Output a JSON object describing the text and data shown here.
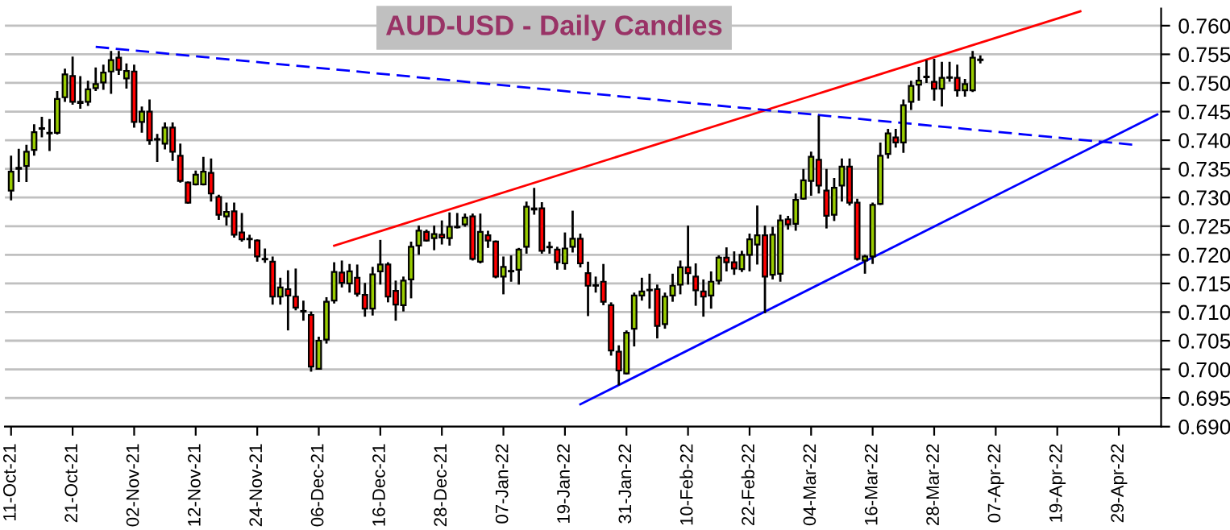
{
  "chart_data": {
    "type": "candlestick",
    "title": "AUD-USD - Daily Candles",
    "categories": [
      "11-Oct-21",
      null,
      null,
      null,
      null,
      null,
      null,
      null,
      "21-Oct-21",
      null,
      null,
      null,
      null,
      null,
      null,
      null,
      "02-Nov-21",
      null,
      null,
      null,
      null,
      null,
      null,
      null,
      "12-Nov-21",
      null,
      null,
      null,
      null,
      null,
      null,
      null,
      "24-Nov-21",
      null,
      null,
      null,
      null,
      null,
      null,
      null,
      "06-Dec-21",
      null,
      null,
      null,
      null,
      null,
      null,
      null,
      "16-Dec-21",
      null,
      null,
      null,
      null,
      null,
      null,
      null,
      "28-Dec-21",
      null,
      null,
      null,
      null,
      null,
      null,
      null,
      "07-Jan-22",
      null,
      null,
      null,
      null,
      null,
      null,
      null,
      "19-Jan-22",
      null,
      null,
      null,
      null,
      null,
      null,
      null,
      "31-Jan-22",
      null,
      null,
      null,
      null,
      null,
      null,
      null,
      "10-Feb-22",
      null,
      null,
      null,
      null,
      null,
      null,
      null,
      "22-Feb-22",
      null,
      null,
      null,
      null,
      null,
      null,
      null,
      "04-Mar-22",
      null,
      null,
      null,
      null,
      null,
      null,
      null,
      "16-Mar-22",
      null,
      null,
      null,
      null,
      null,
      null,
      null,
      "28-Mar-22",
      null,
      null,
      null,
      null,
      null,
      null,
      null,
      "07-Apr-22",
      null,
      null,
      null,
      null,
      null,
      null,
      null,
      "19-Apr-22",
      null,
      null,
      null,
      null,
      null,
      null,
      null,
      "29-Apr-22",
      null,
      null,
      null,
      null,
      null
    ],
    "series": [
      {
        "colors": [
          "#99cc00",
          "#ff0000",
          "#99cc00",
          "#99cc00",
          "#ff0000",
          "#ff0000",
          "#99cc00",
          "#99cc00",
          "#ff0000",
          "#ff0000",
          "#99cc00",
          "#99cc00",
          "#99cc00",
          "#99cc00",
          "#ff0000",
          "#99cc00",
          "#ff0000",
          "#99cc00",
          "#ff0000",
          "#ff0000",
          "#99cc00",
          "#ff0000",
          "#ff0000",
          "#ff0000",
          "#99cc00",
          "#99cc00",
          "#ff0000",
          "#ff0000",
          "#99cc00",
          "#ff0000",
          "#ff0000",
          "#ff0000",
          "#ff0000",
          "#ff0000",
          "#ff0000",
          "#99cc00",
          "#ff0000",
          "#ff0000",
          "#ff0000",
          "#ff0000",
          "#99cc00",
          "#99cc00",
          "#99cc00",
          "#ff0000",
          "#99cc00",
          "#ff0000",
          "#ff0000",
          "#99cc00",
          "#99cc00",
          "#ff0000",
          "#ff0000",
          "#99cc00",
          "#99cc00",
          "#99cc00",
          "#ff0000",
          "#99cc00",
          "#ff0000",
          "#99cc00",
          "#ff0000",
          "#99cc00",
          "#ff0000",
          "#99cc00",
          "#ff0000",
          "#ff0000",
          "#99cc00",
          "#ff0000",
          "#99cc00",
          "#99cc00",
          "#ff0000",
          "#ff0000",
          "#ff0000",
          "#ff0000",
          "#99cc00",
          "#99cc00",
          "#ff0000",
          "#ff0000",
          "#ff0000",
          "#ff0000",
          "#ff0000",
          "#ff0000",
          "#99cc00",
          "#99cc00",
          "#99cc00",
          "#ff0000",
          "#ff0000",
          "#99cc00",
          "#99cc00",
          "#99cc00",
          "#ff0000",
          "#ff0000",
          "#ff0000",
          "#99cc00",
          "#99cc00",
          "#ff0000",
          "#ff0000",
          "#99cc00",
          "#99cc00",
          "#99cc00",
          "#ff0000",
          "#99cc00",
          "#99cc00",
          "#ff0000",
          "#99cc00",
          "#99cc00",
          "#99cc00",
          "#ff0000",
          "#ff0000",
          "#99cc00",
          "#99cc00",
          "#ff0000",
          "#ff0000",
          "#99cc00",
          "#99cc00",
          "#99cc00",
          "#99cc00",
          "#ff0000",
          "#99cc00",
          "#99cc00",
          "#99cc00",
          "#ff0000",
          "#ff0000",
          "#99cc00",
          "#ff0000",
          "#ff0000",
          "#99cc00",
          "#99cc00",
          "#ff0000",
          null,
          null,
          null,
          null,
          null,
          null,
          null,
          null,
          null,
          null,
          null,
          null,
          null,
          null,
          null,
          null,
          null,
          null,
          null,
          null,
          null,
          null,
          null
        ],
        "ohlc": [
          [
            0.7312,
            0.7373,
            0.7295,
            0.7345
          ],
          [
            0.7352,
            0.7385,
            0.7327,
            0.735
          ],
          [
            0.7355,
            0.7392,
            0.7327,
            0.738
          ],
          [
            0.7383,
            0.7428,
            0.7373,
            0.7414
          ],
          [
            0.7421,
            0.7441,
            0.7405,
            0.742
          ],
          [
            0.7413,
            0.7437,
            0.7381,
            0.7412
          ],
          [
            0.7413,
            0.7486,
            0.741,
            0.7472
          ],
          [
            0.7475,
            0.7525,
            0.7467,
            0.7515
          ],
          [
            0.7512,
            0.7546,
            0.7462,
            0.7467
          ],
          [
            0.7467,
            0.7512,
            0.7455,
            0.7465
          ],
          [
            0.7467,
            0.7504,
            0.746,
            0.7489
          ],
          [
            0.7491,
            0.7527,
            0.7486,
            0.7498
          ],
          [
            0.7501,
            0.7532,
            0.7488,
            0.7518
          ],
          [
            0.752,
            0.7556,
            0.7481,
            0.754
          ],
          [
            0.7544,
            0.7556,
            0.7514,
            0.7523
          ],
          [
            0.7508,
            0.7534,
            0.749,
            0.7521
          ],
          [
            0.752,
            0.7532,
            0.7422,
            0.7432
          ],
          [
            0.7432,
            0.7459,
            0.7413,
            0.745
          ],
          [
            0.745,
            0.7471,
            0.7392,
            0.74
          ],
          [
            0.7402,
            0.7411,
            0.7362,
            0.7401
          ],
          [
            0.7394,
            0.7431,
            0.7384,
            0.7422
          ],
          [
            0.7422,
            0.7431,
            0.7364,
            0.738
          ],
          [
            0.7373,
            0.7394,
            0.7326,
            0.7329
          ],
          [
            0.7326,
            0.7328,
            0.7289,
            0.7291
          ],
          [
            0.7323,
            0.7347,
            0.7321,
            0.734
          ],
          [
            0.7323,
            0.7371,
            0.7321,
            0.7345
          ],
          [
            0.7343,
            0.7368,
            0.7293,
            0.7307
          ],
          [
            0.7301,
            0.7305,
            0.7261,
            0.727
          ],
          [
            0.7267,
            0.7291,
            0.7251,
            0.7275
          ],
          [
            0.7276,
            0.7291,
            0.723,
            0.7235
          ],
          [
            0.7239,
            0.7273,
            0.7223,
            0.7227
          ],
          [
            0.7228,
            0.7235,
            0.7211,
            0.7227
          ],
          [
            0.7225,
            0.7227,
            0.7188,
            0.7197
          ],
          [
            0.7193,
            0.7211,
            0.7186,
            0.7192
          ],
          [
            0.7188,
            0.7197,
            0.7113,
            0.7127
          ],
          [
            0.7127,
            0.716,
            0.7113,
            0.7143
          ],
          [
            0.714,
            0.7173,
            0.7068,
            0.7129
          ],
          [
            0.7127,
            0.7176,
            0.7103,
            0.7108
          ],
          [
            0.7102,
            0.712,
            0.7085,
            0.7101
          ],
          [
            0.7095,
            0.7101,
            0.6996,
            0.7005
          ],
          [
            0.7001,
            0.7057,
            0.7,
            0.705
          ],
          [
            0.7052,
            0.7126,
            0.7045,
            0.7118
          ],
          [
            0.712,
            0.7187,
            0.7115,
            0.717
          ],
          [
            0.7169,
            0.719,
            0.7143,
            0.7151
          ],
          [
            0.715,
            0.7184,
            0.7134,
            0.7171
          ],
          [
            0.716,
            0.7183,
            0.7127,
            0.7132
          ],
          [
            0.713,
            0.7151,
            0.7092,
            0.7106
          ],
          [
            0.7106,
            0.7179,
            0.7094,
            0.7166
          ],
          [
            0.7171,
            0.7226,
            0.7148,
            0.7183
          ],
          [
            0.7183,
            0.7187,
            0.7117,
            0.7127
          ],
          [
            0.7137,
            0.7155,
            0.7085,
            0.7113
          ],
          [
            0.7112,
            0.7162,
            0.7101,
            0.7155
          ],
          [
            0.7157,
            0.7223,
            0.7124,
            0.7214
          ],
          [
            0.7216,
            0.7251,
            0.72,
            0.7242
          ],
          [
            0.724,
            0.7244,
            0.7223,
            0.7225
          ],
          [
            0.7229,
            0.7251,
            0.7208,
            0.7236
          ],
          [
            0.7235,
            0.726,
            0.7218,
            0.723
          ],
          [
            0.7229,
            0.7274,
            0.7216,
            0.7249
          ],
          [
            0.7249,
            0.7273,
            0.7246,
            0.7248
          ],
          [
            0.7253,
            0.7272,
            0.7249,
            0.7265
          ],
          [
            0.7267,
            0.7272,
            0.719,
            0.7193
          ],
          [
            0.7188,
            0.7272,
            0.7185,
            0.724
          ],
          [
            0.7234,
            0.7242,
            0.7212,
            0.7225
          ],
          [
            0.7223,
            0.7225,
            0.7159,
            0.7162
          ],
          [
            0.7162,
            0.7197,
            0.7131,
            0.7179
          ],
          [
            0.7172,
            0.7199,
            0.7153,
            0.7171
          ],
          [
            0.7174,
            0.7212,
            0.7148,
            0.7209
          ],
          [
            0.7214,
            0.7293,
            0.7202,
            0.7284
          ],
          [
            0.7281,
            0.7317,
            0.727,
            0.7279
          ],
          [
            0.7281,
            0.7292,
            0.7202,
            0.7207
          ],
          [
            0.7214,
            0.7223,
            0.7202,
            0.7213
          ],
          [
            0.7209,
            0.7214,
            0.7174,
            0.7187
          ],
          [
            0.7185,
            0.7239,
            0.7174,
            0.7211
          ],
          [
            0.7214,
            0.7277,
            0.7204,
            0.7228
          ],
          [
            0.7228,
            0.7237,
            0.7178,
            0.7185
          ],
          [
            0.7168,
            0.7188,
            0.7093,
            0.7146
          ],
          [
            0.7147,
            0.7162,
            0.7134,
            0.7146
          ],
          [
            0.7153,
            0.7184,
            0.7112,
            0.7118
          ],
          [
            0.7112,
            0.7117,
            0.7024,
            0.7033
          ],
          [
            0.7031,
            0.7042,
            0.6972,
            0.6998
          ],
          [
            0.6993,
            0.7068,
            0.6991,
            0.7064
          ],
          [
            0.7071,
            0.7134,
            0.704,
            0.7129
          ],
          [
            0.7129,
            0.716,
            0.712,
            0.7136
          ],
          [
            0.7139,
            0.7167,
            0.7106,
            0.7138
          ],
          [
            0.714,
            0.7148,
            0.7054,
            0.7076
          ],
          [
            0.7079,
            0.7134,
            0.7071,
            0.7127
          ],
          [
            0.7129,
            0.7167,
            0.7118,
            0.7146
          ],
          [
            0.7148,
            0.719,
            0.7131,
            0.7178
          ],
          [
            0.7178,
            0.7251,
            0.7148,
            0.7168
          ],
          [
            0.7162,
            0.7185,
            0.7111,
            0.7138
          ],
          [
            0.7136,
            0.7157,
            0.7092,
            0.7127
          ],
          [
            0.7129,
            0.7171,
            0.7106,
            0.7153
          ],
          [
            0.7155,
            0.7199,
            0.7148,
            0.7195
          ],
          [
            0.7195,
            0.7213,
            0.7171,
            0.7187
          ],
          [
            0.7187,
            0.7206,
            0.7165,
            0.7176
          ],
          [
            0.7175,
            0.7207,
            0.717,
            0.72
          ],
          [
            0.72,
            0.7237,
            0.7171,
            0.7227
          ],
          [
            0.7218,
            0.7286,
            0.7183,
            0.7234
          ],
          [
            0.7234,
            0.7251,
            0.7098,
            0.7162
          ],
          [
            0.7165,
            0.7249,
            0.7157,
            0.7235
          ],
          [
            0.7167,
            0.727,
            0.7153,
            0.726
          ],
          [
            0.7262,
            0.7268,
            0.7244,
            0.7253
          ],
          [
            0.7254,
            0.7307,
            0.7242,
            0.7296
          ],
          [
            0.7298,
            0.735,
            0.7296,
            0.733
          ],
          [
            0.7329,
            0.738,
            0.7303,
            0.7371
          ],
          [
            0.7366,
            0.7443,
            0.7307,
            0.7321
          ],
          [
            0.7312,
            0.735,
            0.7246,
            0.7268
          ],
          [
            0.727,
            0.7334,
            0.7259,
            0.7317
          ],
          [
            0.7321,
            0.7368,
            0.7293,
            0.7354
          ],
          [
            0.7354,
            0.7368,
            0.7286,
            0.7291
          ],
          [
            0.7291,
            0.7298,
            0.719,
            0.7193
          ],
          [
            0.719,
            0.72,
            0.7167,
            0.7197
          ],
          [
            0.7197,
            0.7291,
            0.7184,
            0.7287
          ],
          [
            0.7289,
            0.7396,
            0.7287,
            0.7373
          ],
          [
            0.7376,
            0.742,
            0.7368,
            0.7412
          ],
          [
            0.7405,
            0.742,
            0.7387,
            0.7396
          ],
          [
            0.7396,
            0.7471,
            0.7378,
            0.7461
          ],
          [
            0.7467,
            0.7504,
            0.7453,
            0.7495
          ],
          [
            0.7497,
            0.7528,
            0.7469,
            0.7504
          ],
          [
            0.7511,
            0.754,
            0.75,
            0.751
          ],
          [
            0.7502,
            0.7542,
            0.7469,
            0.749
          ],
          [
            0.749,
            0.7537,
            0.7459,
            0.7509
          ],
          [
            0.751,
            0.7537,
            0.7502,
            0.7509
          ],
          [
            0.7509,
            0.7532,
            0.7476,
            0.7487
          ],
          [
            0.7487,
            0.7507,
            0.7476,
            0.7498
          ],
          [
            0.7487,
            0.7556,
            0.7484,
            0.7544
          ],
          [
            0.7541,
            0.7548,
            0.7534,
            0.754
          ],
          null,
          null,
          null,
          null,
          null,
          null,
          null,
          null,
          null,
          null,
          null,
          null,
          null,
          null,
          null,
          null,
          null,
          null,
          null,
          null,
          null,
          null,
          null
        ]
      },
      {
        "type": "line",
        "color": "#ff0000",
        "line_style": "solid",
        "values": [
          null,
          null,
          null,
          null,
          null,
          null,
          null,
          null,
          null,
          null,
          null,
          null,
          null,
          null,
          null,
          null,
          null,
          null,
          null,
          null,
          null,
          null,
          null,
          null,
          null,
          null,
          null,
          null,
          null,
          null,
          null,
          null,
          null,
          null,
          null,
          null,
          null,
          null,
          null,
          null,
          null,
          null,
          0.7216,
          null,
          null,
          null,
          null,
          null,
          null,
          null,
          null,
          null,
          null,
          null,
          null,
          null,
          null,
          null,
          null,
          null,
          null,
          null,
          null,
          null,
          null,
          null,
          null,
          null,
          null,
          null,
          null,
          null,
          null,
          null,
          null,
          null,
          null,
          null,
          null,
          null,
          null,
          null,
          null,
          null,
          null,
          null,
          null,
          null,
          null,
          null,
          null,
          null,
          null,
          null,
          null,
          null,
          null,
          null,
          null,
          null,
          null,
          null,
          null,
          null,
          null,
          null,
          null,
          null,
          null,
          null,
          null,
          null,
          null,
          null,
          null,
          null,
          null,
          null,
          null,
          null,
          null,
          null,
          null,
          null,
          null,
          null,
          null,
          null,
          null,
          null,
          null,
          null,
          null,
          null,
          null,
          null,
          null,
          null,
          null,
          0.7625,
          null,
          null,
          null,
          null,
          null,
          null,
          null,
          null,
          null,
          null
        ]
      },
      {
        "type": "line",
        "color": "#0000ff",
        "line_style": "dashed",
        "values": [
          null,
          null,
          null,
          null,
          null,
          null,
          null,
          null,
          null,
          null,
          null,
          0.7563,
          null,
          null,
          null,
          null,
          null,
          null,
          null,
          null,
          null,
          null,
          null,
          null,
          null,
          null,
          null,
          null,
          null,
          null,
          null,
          null,
          null,
          null,
          null,
          null,
          null,
          null,
          null,
          null,
          null,
          null,
          null,
          null,
          null,
          null,
          null,
          null,
          null,
          null,
          null,
          null,
          null,
          null,
          null,
          null,
          null,
          null,
          null,
          null,
          null,
          null,
          null,
          null,
          null,
          null,
          null,
          null,
          null,
          null,
          null,
          null,
          null,
          null,
          null,
          null,
          null,
          null,
          null,
          null,
          null,
          null,
          null,
          null,
          null,
          null,
          null,
          null,
          null,
          null,
          null,
          null,
          null,
          null,
          null,
          null,
          null,
          null,
          null,
          null,
          null,
          null,
          null,
          null,
          null,
          null,
          null,
          null,
          null,
          null,
          null,
          null,
          null,
          null,
          null,
          null,
          null,
          null,
          null,
          null,
          null,
          null,
          null,
          null,
          null,
          null,
          null,
          null,
          null,
          null,
          null,
          null,
          null,
          null,
          null,
          null,
          null,
          null,
          null,
          null,
          null,
          null,
          null,
          null,
          null,
          null,
          0.7392,
          null,
          null,
          null
        ]
      },
      {
        "type": "line",
        "color": "#0000ff",
        "line_style": "solid",
        "values": [
          null,
          null,
          null,
          null,
          null,
          null,
          null,
          null,
          null,
          null,
          null,
          null,
          null,
          null,
          null,
          null,
          null,
          null,
          null,
          null,
          null,
          null,
          null,
          null,
          null,
          null,
          null,
          null,
          null,
          null,
          null,
          null,
          null,
          null,
          null,
          null,
          null,
          null,
          null,
          null,
          null,
          null,
          null,
          null,
          null,
          null,
          null,
          null,
          null,
          null,
          null,
          null,
          null,
          null,
          null,
          null,
          null,
          null,
          null,
          null,
          null,
          null,
          null,
          null,
          null,
          null,
          null,
          null,
          null,
          null,
          null,
          null,
          null,
          null,
          0.6939,
          null,
          null,
          null,
          null,
          null,
          null,
          null,
          null,
          null,
          null,
          null,
          null,
          null,
          null,
          null,
          null,
          null,
          null,
          null,
          null,
          null,
          null,
          null,
          null,
          null,
          null,
          null,
          null,
          null,
          null,
          null,
          null,
          null,
          null,
          null,
          null,
          null,
          null,
          null,
          null,
          null,
          null,
          null,
          null,
          null,
          null,
          null,
          null,
          null,
          null,
          null,
          null,
          null,
          null,
          null,
          null,
          null,
          null,
          null,
          null,
          null,
          null,
          null,
          null,
          null,
          null,
          null,
          null,
          null,
          null,
          null,
          null,
          null,
          null,
          0.7445
        ]
      }
    ],
    "ylim": [
      0.69,
      0.763
    ],
    "yticks": [
      {
        "value": 0.69,
        "label": "0.690"
      },
      0.695,
      {
        "value": 0.7,
        "label": "0.700"
      },
      0.705,
      {
        "value": 0.71,
        "label": "0.710"
      },
      0.715,
      {
        "value": 0.72,
        "label": "0.720"
      },
      0.725,
      {
        "value": 0.73,
        "label": "0.730"
      },
      0.735,
      {
        "value": 0.74,
        "label": "0.740"
      },
      0.745,
      {
        "value": 0.75,
        "label": "0.750"
      },
      0.755,
      {
        "value": 0.76,
        "label": "0.760"
      }
    ],
    "grid": "y",
    "legend": false
  }
}
